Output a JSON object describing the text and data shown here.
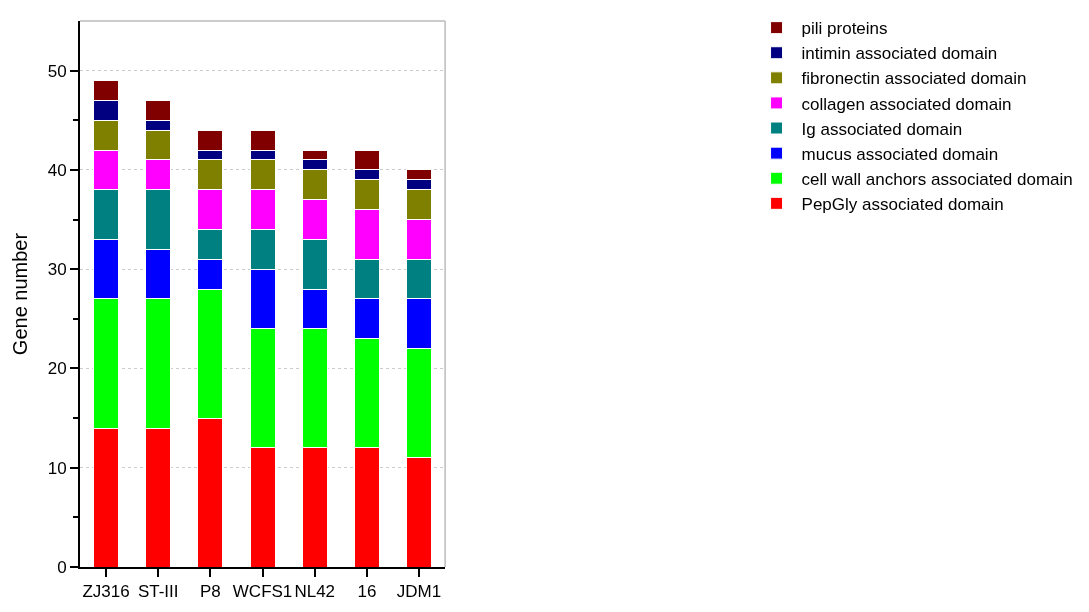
{
  "chart_data": {
    "type": "bar",
    "stacked": true,
    "ylabel": "Gene number",
    "categories": [
      "ZJ316",
      "ST-III",
      "P8",
      "WCFS1",
      "NL42",
      "16",
      "JDM1"
    ],
    "series": [
      {
        "name": "PepGly associated domain",
        "color": "#ff0000",
        "values": [
          14,
          14,
          15,
          12,
          12,
          12,
          11
        ]
      },
      {
        "name": "cell wall anchors associated domain",
        "color": "#00ff00",
        "values": [
          13,
          13,
          13,
          12,
          12,
          11,
          11
        ]
      },
      {
        "name": "mucus associated domain",
        "color": "#0000ff",
        "values": [
          6,
          5,
          3,
          6,
          4,
          4,
          5
        ]
      },
      {
        "name": "Ig associated domain",
        "color": "#008080",
        "values": [
          5,
          6,
          3,
          4,
          5,
          4,
          4
        ]
      },
      {
        "name": "collagen associated domain",
        "color": "#ff00ff",
        "values": [
          4,
          3,
          4,
          4,
          4,
          5,
          4
        ]
      },
      {
        "name": "fibronectin associated domain",
        "color": "#808000",
        "values": [
          3,
          3,
          3,
          3,
          3,
          3,
          3
        ]
      },
      {
        "name": "intimin associated domain",
        "color": "#000080",
        "values": [
          2,
          1,
          1,
          1,
          1,
          1,
          1
        ]
      },
      {
        "name": "pili proteins",
        "color": "#800000",
        "values": [
          2,
          2,
          2,
          2,
          1,
          2,
          1
        ]
      }
    ],
    "ylim": [
      0,
      55
    ],
    "yticks": [
      0,
      {
        "value": 5,
        "label": null
      },
      10,
      {
        "value": 15,
        "label": null
      },
      20,
      {
        "value": 25,
        "label": null
      },
      30,
      {
        "value": 35,
        "label": null
      },
      40,
      {
        "value": 45,
        "label": null
      },
      50
    ],
    "grid": "y",
    "legend": "top right"
  }
}
